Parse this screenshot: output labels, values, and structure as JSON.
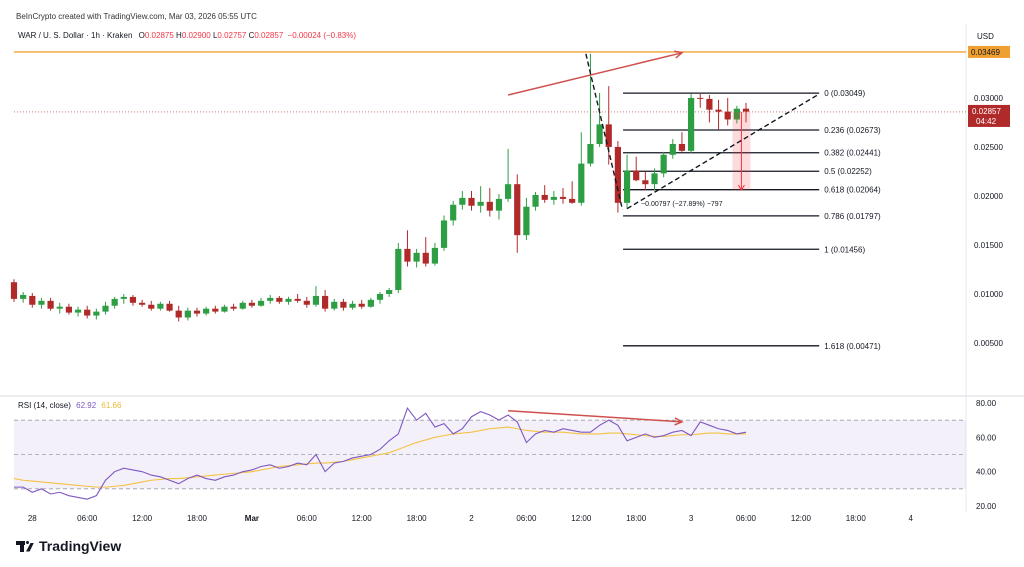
{
  "watermark": "BeInCrypto created with TradingView.com, Mar 03, 2026 05:55 UTC",
  "brand": "TradingView",
  "symbol": "WAR / U. S. Dollar · 1h · Kraken",
  "ohlc": {
    "o_label": "O",
    "o": "0.02875",
    "h_label": "H",
    "h": "0.02900",
    "l_label": "L",
    "l": "0.02757",
    "c_label": "C",
    "c": "0.02857",
    "change": "−0.00024 (−0.83%)"
  },
  "currency": "USD",
  "colors": {
    "up": "#089981",
    "down": "#f23645",
    "candle_up": "#2e9e45",
    "candle_down": "#b02a2a",
    "resistance": "#f0a030",
    "rsi": "#7e57c2",
    "rsi_ma": "#f5c242",
    "annotation": "#d0504e"
  },
  "chart_data": [
    {
      "type": "candlestick",
      "ylim": [
        0.0,
        0.0355
      ],
      "y_ticks": [
        0.005,
        0.01,
        0.015,
        0.02,
        0.025,
        0.03
      ],
      "y_tick_labels": [
        "0.00500",
        "0.01000",
        "0.01500",
        "0.02000",
        "0.02500",
        "0.03000"
      ],
      "x_ticks": [
        {
          "t": 2,
          "label": "28"
        },
        {
          "t": 8,
          "label": "06:00"
        },
        {
          "t": 14,
          "label": "12:00"
        },
        {
          "t": 20,
          "label": "18:00"
        },
        {
          "t": 26,
          "label": "Mar"
        },
        {
          "t": 32,
          "label": "06:00"
        },
        {
          "t": 38,
          "label": "12:00"
        },
        {
          "t": 44,
          "label": "18:00"
        },
        {
          "t": 50,
          "label": "2"
        },
        {
          "t": 56,
          "label": "06:00"
        },
        {
          "t": 62,
          "label": "12:00"
        },
        {
          "t": 68,
          "label": "18:00"
        },
        {
          "t": 74,
          "label": "3"
        },
        {
          "t": 80,
          "label": "06:00"
        },
        {
          "t": 86,
          "label": "12:00"
        },
        {
          "t": 92,
          "label": "18:00"
        },
        {
          "t": 98,
          "label": "4"
        }
      ],
      "candles": [
        [
          0.0112,
          0.0115,
          0.0092,
          0.0095
        ],
        [
          0.0095,
          0.0102,
          0.0091,
          0.0099
        ],
        [
          0.0098,
          0.0101,
          0.0086,
          0.0089
        ],
        [
          0.0089,
          0.0096,
          0.0085,
          0.0093
        ],
        [
          0.0093,
          0.0096,
          0.0083,
          0.0085
        ],
        [
          0.0085,
          0.0091,
          0.008,
          0.0087
        ],
        [
          0.0087,
          0.009,
          0.0079,
          0.0081
        ],
        [
          0.0081,
          0.0087,
          0.0077,
          0.0084
        ],
        [
          0.0084,
          0.0088,
          0.0075,
          0.0078
        ],
        [
          0.0078,
          0.0085,
          0.0074,
          0.0082
        ],
        [
          0.0082,
          0.0092,
          0.0079,
          0.0088
        ],
        [
          0.0088,
          0.0097,
          0.0085,
          0.0095
        ],
        [
          0.0095,
          0.01,
          0.009,
          0.0097
        ],
        [
          0.0097,
          0.0099,
          0.0088,
          0.0091
        ],
        [
          0.0091,
          0.0094,
          0.0087,
          0.0089
        ],
        [
          0.0089,
          0.0093,
          0.0083,
          0.0085
        ],
        [
          0.0085,
          0.0092,
          0.0083,
          0.009
        ],
        [
          0.009,
          0.0093,
          0.0082,
          0.0083
        ],
        [
          0.0083,
          0.0088,
          0.0072,
          0.0076
        ],
        [
          0.0076,
          0.0086,
          0.0073,
          0.0083
        ],
        [
          0.0083,
          0.0086,
          0.0077,
          0.008
        ],
        [
          0.008,
          0.0087,
          0.0078,
          0.0085
        ],
        [
          0.0085,
          0.0088,
          0.008,
          0.0082
        ],
        [
          0.0082,
          0.0089,
          0.0081,
          0.0087
        ],
        [
          0.0087,
          0.009,
          0.0083,
          0.0085
        ],
        [
          0.0085,
          0.0093,
          0.0084,
          0.0091
        ],
        [
          0.0091,
          0.0094,
          0.0086,
          0.0088
        ],
        [
          0.0088,
          0.0096,
          0.0087,
          0.0093
        ],
        [
          0.0093,
          0.0099,
          0.009,
          0.0096
        ],
        [
          0.0096,
          0.0098,
          0.009,
          0.0092
        ],
        [
          0.0092,
          0.0097,
          0.0089,
          0.0095
        ],
        [
          0.0095,
          0.01,
          0.0091,
          0.0093
        ],
        [
          0.0093,
          0.0097,
          0.0086,
          0.0089
        ],
        [
          0.0089,
          0.0108,
          0.0087,
          0.0098
        ],
        [
          0.0098,
          0.0104,
          0.0082,
          0.0085
        ],
        [
          0.0085,
          0.0095,
          0.0083,
          0.0092
        ],
        [
          0.0092,
          0.0095,
          0.0083,
          0.0086
        ],
        [
          0.0086,
          0.0093,
          0.0084,
          0.009
        ],
        [
          0.009,
          0.0094,
          0.0085,
          0.0087
        ],
        [
          0.0087,
          0.0096,
          0.0086,
          0.0094
        ],
        [
          0.0094,
          0.0102,
          0.009,
          0.01
        ],
        [
          0.01,
          0.0106,
          0.0097,
          0.0104
        ],
        [
          0.0104,
          0.0152,
          0.0101,
          0.0146
        ],
        [
          0.0146,
          0.0165,
          0.0128,
          0.0133
        ],
        [
          0.0133,
          0.0146,
          0.0127,
          0.0142
        ],
        [
          0.0142,
          0.0158,
          0.0128,
          0.0131
        ],
        [
          0.0131,
          0.0152,
          0.0129,
          0.0147
        ],
        [
          0.0147,
          0.018,
          0.0144,
          0.0175
        ],
        [
          0.0175,
          0.0195,
          0.017,
          0.0191
        ],
        [
          0.0191,
          0.0205,
          0.0186,
          0.0198
        ],
        [
          0.0198,
          0.0205,
          0.0185,
          0.019
        ],
        [
          0.019,
          0.021,
          0.0183,
          0.0194
        ],
        [
          0.0194,
          0.0208,
          0.0179,
          0.0185
        ],
        [
          0.0185,
          0.0202,
          0.0176,
          0.0197
        ],
        [
          0.0197,
          0.0248,
          0.0194,
          0.0212
        ],
        [
          0.0212,
          0.0222,
          0.0142,
          0.016
        ],
        [
          0.016,
          0.0198,
          0.0155,
          0.0189
        ],
        [
          0.0189,
          0.0204,
          0.0185,
          0.0201
        ],
        [
          0.0201,
          0.0211,
          0.0193,
          0.0196
        ],
        [
          0.0196,
          0.0205,
          0.0191,
          0.0199
        ],
        [
          0.0199,
          0.0208,
          0.0192,
          0.0197
        ],
        [
          0.0197,
          0.0215,
          0.0192,
          0.0193
        ],
        [
          0.0193,
          0.0265,
          0.019,
          0.0233
        ],
        [
          0.0233,
          0.0345,
          0.023,
          0.0253
        ],
        [
          0.0253,
          0.0305,
          0.025,
          0.0273
        ],
        [
          0.0273,
          0.0312,
          0.0232,
          0.025
        ],
        [
          0.025,
          0.0256,
          0.0183,
          0.0193
        ],
        [
          0.0193,
          0.0242,
          0.0187,
          0.0226
        ],
        [
          0.0226,
          0.024,
          0.0215,
          0.0216
        ],
        [
          0.0216,
          0.0225,
          0.0206,
          0.0212
        ],
        [
          0.0212,
          0.0228,
          0.0206,
          0.0223
        ],
        [
          0.0223,
          0.0245,
          0.0219,
          0.0242
        ],
        [
          0.0242,
          0.0258,
          0.0238,
          0.0253
        ],
        [
          0.0253,
          0.0265,
          0.0245,
          0.0246
        ],
        [
          0.0246,
          0.0304,
          0.0244,
          0.03
        ],
        [
          0.03,
          0.0305,
          0.029,
          0.0299
        ],
        [
          0.0299,
          0.0303,
          0.0275,
          0.0288
        ],
        [
          0.0288,
          0.0298,
          0.0268,
          0.0286
        ],
        [
          0.0286,
          0.03,
          0.0272,
          0.0278
        ],
        [
          0.0278,
          0.0292,
          0.0274,
          0.0289
        ],
        [
          0.0289,
          0.0295,
          0.0275,
          0.0286
        ]
      ],
      "horizontal_levels": [
        {
          "value": 0.03469,
          "label": "0.03469"
        }
      ],
      "last_price": {
        "value": 0.02857,
        "label": "0.02857",
        "countdown": "04:42"
      },
      "fibonacci": {
        "t_start": 67,
        "t_end": 88,
        "levels": [
          {
            "value": 0.03049,
            "label": "0 (0.03049)"
          },
          {
            "value": 0.02673,
            "label": "0.236 (0.02673)"
          },
          {
            "value": 0.02441,
            "label": "0.382 (0.02441)"
          },
          {
            "value": 0.02252,
            "label": "0.5 (0.02252)"
          },
          {
            "value": 0.02064,
            "label": "0.618 (0.02064)"
          },
          {
            "value": 0.01797,
            "label": "0.786 (0.01797)"
          },
          {
            "value": 0.01456,
            "label": "1 (0.01456)"
          },
          {
            "value": 0.00471,
            "label": "1.618 (0.00471)"
          }
        ]
      },
      "measure": {
        "t": 79.5,
        "from": 0.02857,
        "to": 0.0206,
        "label": "−0.00797 (−27.89%) −797"
      },
      "trendlines": {
        "upper_arrow": {
          "t1": 54,
          "v1": 0.0303,
          "t2": 73,
          "v2": 0.0346
        },
        "dashed_drop": {
          "t1": 62.5,
          "v1": 0.0345,
          "t2": 66.5,
          "v2": 0.0186
        },
        "dashed_rise": {
          "t1": 67,
          "v1": 0.0187,
          "t2": 88,
          "v2": 0.0304
        }
      }
    },
    {
      "type": "line",
      "title": "RSI (14, close)",
      "series": [
        {
          "name": "RSI",
          "value_label": "62.92"
        },
        {
          "name": "MA",
          "value_label": "61.66"
        }
      ],
      "ylim": [
        20,
        80
      ],
      "y_ticks": [
        20,
        40,
        60,
        80
      ],
      "y_tick_labels": [
        "20.00",
        "40.00",
        "60.00",
        "80.00"
      ],
      "bands": {
        "upper": 70,
        "middle": 50,
        "lower": 30
      },
      "rsi": [
        31,
        31,
        28,
        30,
        27,
        28,
        26,
        25,
        24,
        26,
        35,
        40,
        42,
        41,
        40,
        38,
        37,
        35,
        33,
        36,
        38,
        36,
        35,
        37,
        38,
        40,
        41,
        43,
        44,
        42,
        43,
        45,
        44,
        50,
        40,
        45,
        46,
        48,
        49,
        50,
        53,
        58,
        62,
        77,
        70,
        74,
        66,
        68,
        62,
        65,
        72,
        75,
        73,
        70,
        73,
        69,
        57,
        62,
        64,
        63,
        65,
        64,
        63,
        63,
        67,
        70,
        67,
        58,
        60,
        62,
        60,
        61,
        63,
        64,
        61,
        69,
        67,
        65,
        64,
        62,
        63
      ],
      "ma": [
        36,
        35,
        34.5,
        34,
        33.5,
        33,
        32.5,
        32,
        31.5,
        31,
        31,
        31.5,
        32,
        33,
        34,
        35,
        35.5,
        36,
        36,
        36.5,
        37,
        37.5,
        38,
        38.5,
        39,
        39.5,
        40,
        41,
        42,
        43,
        43.5,
        44,
        44.5,
        45,
        45,
        45.5,
        46,
        47,
        48,
        49,
        50,
        51,
        53,
        55,
        57,
        58.5,
        60,
        61,
        62,
        62.5,
        63,
        64,
        65,
        65.5,
        66,
        65,
        64,
        63.5,
        63,
        63,
        63,
        62.5,
        62,
        62,
        62,
        62.5,
        62.5,
        62,
        61.5,
        61,
        60.5,
        60.5,
        61,
        61.5,
        61.5,
        62,
        62.5,
        62.5,
        62,
        62,
        62
      ],
      "divergence_arrow": {
        "t1": 54,
        "v1": 75.5,
        "t2": 73,
        "v2": 69
      }
    }
  ]
}
